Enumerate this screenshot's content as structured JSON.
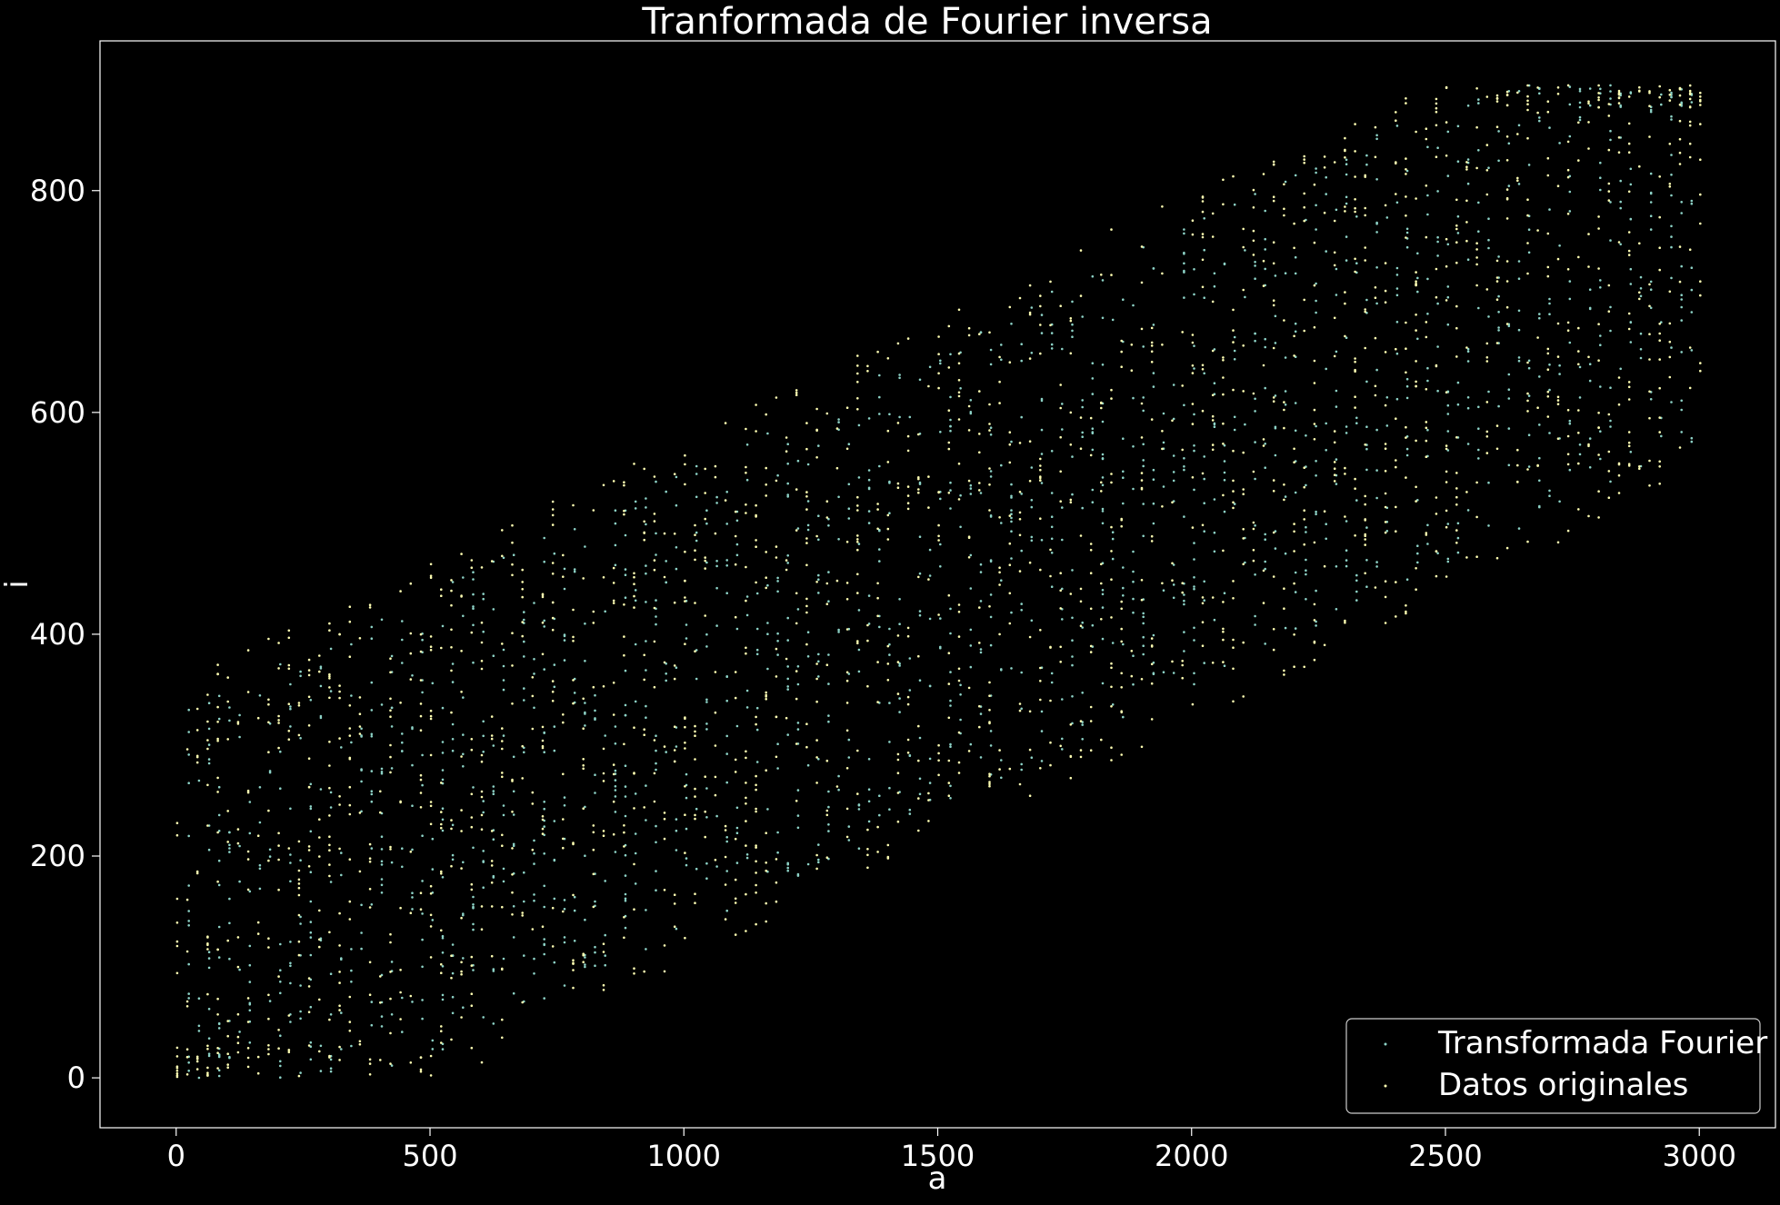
{
  "chart_data": {
    "type": "scatter",
    "title": "Tranformada de Fourier inversa",
    "xlabel": "a",
    "ylabel": "i",
    "xlim": [
      -150,
      3150
    ],
    "ylim": [
      -45,
      935
    ],
    "xticks": [
      0,
      500,
      1000,
      1500,
      2000,
      2500,
      3000
    ],
    "yticks": [
      0,
      200,
      400,
      600,
      800
    ],
    "grid": false,
    "legend_position": "bottom-right",
    "background": "#000000",
    "series": [
      {
        "name": "Transformada Fourier",
        "color": "#8dd3c7",
        "x_range": [
          25,
          2985
        ],
        "trend": {
          "slope": 0.22,
          "intercept": 120
        },
        "band_half_width": 210,
        "column_spacing": 20,
        "point_count": 1700
      },
      {
        "name": "Datos originales",
        "color": "#ffffb3",
        "x_range": [
          0,
          3000
        ],
        "trend": {
          "slope": 0.22,
          "intercept": 120
        },
        "band_half_width": 240,
        "column_spacing": 20,
        "point_count": 1900
      }
    ]
  }
}
